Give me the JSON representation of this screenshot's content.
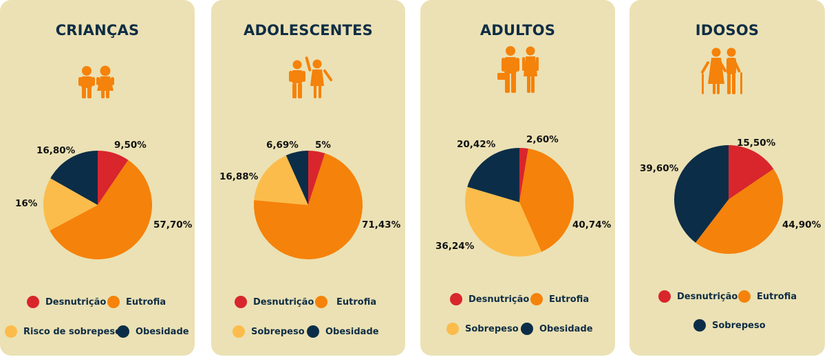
{
  "colors": {
    "desnutricao": "#d8262c",
    "eutrofia": "#f5820a",
    "sobrepeso": "#fbbc4b",
    "obesidade": "#0c2d47",
    "card_background": "#ebe1b4",
    "title_text": "#0f2d45"
  },
  "chart_data": [
    {
      "type": "pie",
      "title": "CRIANÇAS",
      "icon": "children-icon",
      "slices": [
        {
          "label": "Desnutrição",
          "value": 9.5,
          "color": "#d8262c"
        },
        {
          "label": "Eutrofia",
          "value": 57.7,
          "color": "#f5820a"
        },
        {
          "label": "Risco de sobrepeso",
          "value": 16,
          "color": "#fbbc4b"
        },
        {
          "label": "Obesidade",
          "value": 16.8,
          "color": "#0c2d47"
        }
      ],
      "data_labels": [
        "9,50%",
        "57,70%",
        "16%",
        "16,80%"
      ],
      "legend": [
        "Desnutrição",
        "Eutrofia",
        "Risco de sobrepeso",
        "Obesidade"
      ]
    },
    {
      "type": "pie",
      "title": "ADOLESCENTES",
      "icon": "teenagers-icon",
      "slices": [
        {
          "label": "Desnutrição",
          "value": 5,
          "color": "#d8262c"
        },
        {
          "label": "Eutrofia",
          "value": 71.43,
          "color": "#f5820a"
        },
        {
          "label": "Sobrepeso",
          "value": 16.88,
          "color": "#fbbc4b"
        },
        {
          "label": "Obesidade",
          "value": 6.69,
          "color": "#0c2d47"
        }
      ],
      "data_labels": [
        "5%",
        "71,43%",
        "16,88%",
        "6,69%"
      ],
      "legend": [
        "Desnutrição",
        "Eutrofia",
        "Sobrepeso",
        "Obesidade"
      ]
    },
    {
      "type": "pie",
      "title": "ADULTOS",
      "icon": "adults-icon",
      "slices": [
        {
          "label": "Desnutrição",
          "value": 2.6,
          "color": "#d8262c"
        },
        {
          "label": "Eutrofia",
          "value": 40.74,
          "color": "#f5820a"
        },
        {
          "label": "Sobrepeso",
          "value": 36.24,
          "color": "#fbbc4b"
        },
        {
          "label": "Obesidade",
          "value": 20.42,
          "color": "#0c2d47"
        }
      ],
      "data_labels": [
        "2,60%",
        "40,74%",
        "36,24%",
        "20,42%"
      ],
      "legend": [
        "Desnutrição",
        "Eutrofia",
        "Sobrepeso",
        "Obesidade"
      ]
    },
    {
      "type": "pie",
      "title": "IDOSOS",
      "icon": "elderly-icon",
      "slices": [
        {
          "label": "Desnutrição",
          "value": 15.5,
          "color": "#d8262c"
        },
        {
          "label": "Eutrofia",
          "value": 44.9,
          "color": "#f5820a"
        },
        {
          "label": "Sobrepeso",
          "value": 39.6,
          "color": "#0c2d47"
        }
      ],
      "data_labels": [
        "15,50%",
        "44,90%",
        "39,60%"
      ],
      "legend": [
        "Desnutrição",
        "Eutrofia",
        "Sobrepeso"
      ]
    }
  ]
}
